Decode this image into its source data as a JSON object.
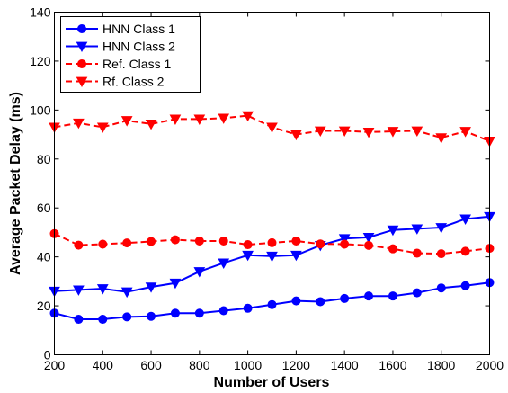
{
  "chart_data": {
    "type": "line",
    "title": "",
    "xlabel": "Number of Users",
    "ylabel": "Average Packet Delay (ms)",
    "xlim": [
      200,
      2000
    ],
    "ylim": [
      0,
      140
    ],
    "xticks": [
      200,
      400,
      600,
      800,
      1000,
      1200,
      1400,
      1600,
      1800,
      2000
    ],
    "yticks": [
      0,
      20,
      40,
      60,
      80,
      100,
      120,
      140
    ],
    "grid": false,
    "legend_position": "top-left",
    "series": [
      {
        "name": "HNN Class 1",
        "color": "#0000ff",
        "line_style": "solid",
        "marker": "circle",
        "x": [
          200,
          300,
          400,
          500,
          600,
          700,
          800,
          900,
          1000,
          1100,
          1200,
          1300,
          1400,
          1500,
          1600,
          1700,
          1800,
          1900,
          2000
        ],
        "y": [
          17,
          14.5,
          14.5,
          15.5,
          15.7,
          17,
          17,
          18,
          19,
          20.5,
          22,
          21.7,
          23,
          24,
          24,
          25.3,
          27.3,
          28.2,
          29.5
        ]
      },
      {
        "name": "HNN Class 2",
        "color": "#0000ff",
        "line_style": "solid",
        "marker": "triangle-down",
        "x": [
          200,
          300,
          400,
          500,
          600,
          700,
          800,
          900,
          1000,
          1100,
          1200,
          1300,
          1400,
          1500,
          1600,
          1700,
          1800,
          1900,
          2000
        ],
        "y": [
          26,
          26.5,
          27,
          25.7,
          27.7,
          29.3,
          34,
          37.5,
          40.7,
          40.3,
          40.7,
          44.7,
          47.5,
          48,
          51,
          51.5,
          52,
          55.5,
          56.5
        ]
      },
      {
        "name": "Ref. Class 1",
        "color": "#ff0000",
        "line_style": "dashed",
        "marker": "circle",
        "x": [
          200,
          300,
          400,
          500,
          600,
          700,
          800,
          900,
          1000,
          1100,
          1200,
          1300,
          1400,
          1500,
          1600,
          1700,
          1800,
          1900,
          2000
        ],
        "y": [
          49.5,
          44.8,
          45.2,
          45.7,
          46.3,
          47,
          46.5,
          46.5,
          45,
          45.8,
          46.5,
          45.3,
          45.2,
          44.7,
          43.3,
          41.5,
          41.3,
          42.3,
          43.5
        ]
      },
      {
        "name": "Rf. Class 2",
        "color": "#ff0000",
        "line_style": "dashed",
        "marker": "triangle-down",
        "x": [
          200,
          300,
          400,
          500,
          600,
          700,
          800,
          900,
          1000,
          1100,
          1200,
          1300,
          1400,
          1500,
          1600,
          1700,
          1800,
          1900,
          2000
        ],
        "y": [
          93,
          94.7,
          93,
          95.7,
          94.3,
          96.3,
          96.3,
          96.7,
          97.7,
          93,
          90,
          91.5,
          91.5,
          91,
          91.3,
          91.5,
          88.7,
          91.3,
          87.3
        ]
      }
    ]
  }
}
